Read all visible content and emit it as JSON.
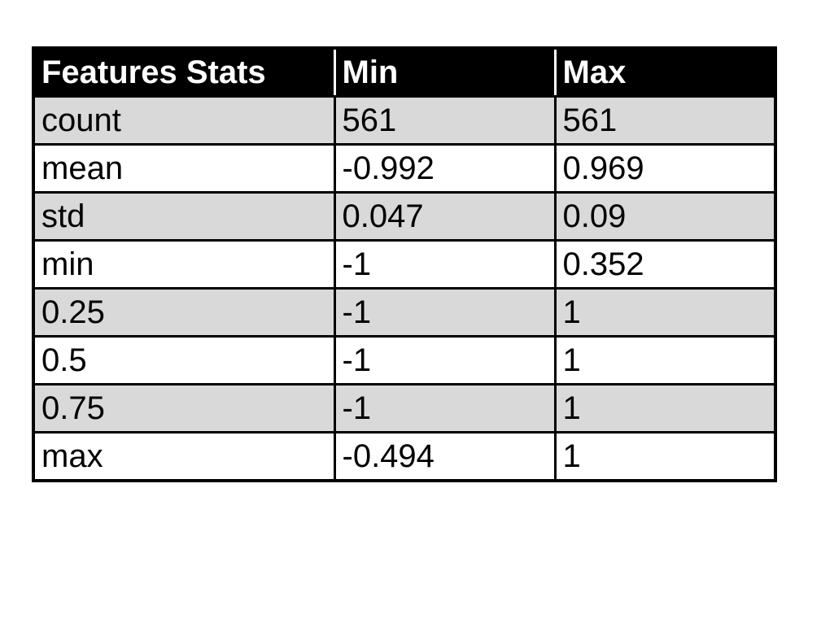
{
  "table": {
    "headers": [
      "Features Stats",
      "Min",
      "Max"
    ],
    "rows": [
      {
        "label": "count",
        "min": "561",
        "max": "561"
      },
      {
        "label": "mean",
        "min": "-0.992",
        "max": "0.969"
      },
      {
        "label": "std",
        "min": "0.047",
        "max": "0.09"
      },
      {
        "label": "min",
        "min": "-1",
        "max": "0.352"
      },
      {
        "label": "0.25",
        "min": "-1",
        "max": "1"
      },
      {
        "label": "0.5",
        "min": "-1",
        "max": "1"
      },
      {
        "label": "0.75",
        "min": "-1",
        "max": "1"
      },
      {
        "label": "max",
        "min": "-0.494",
        "max": "1"
      }
    ]
  }
}
